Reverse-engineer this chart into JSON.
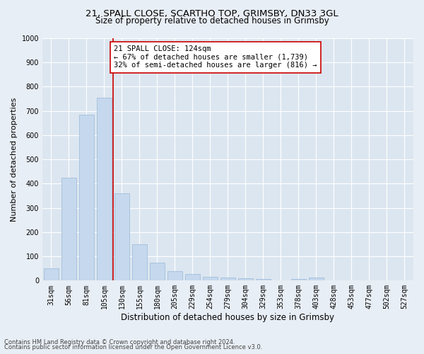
{
  "title_line1": "21, SPALL CLOSE, SCARTHO TOP, GRIMSBY, DN33 3GL",
  "title_line2": "Size of property relative to detached houses in Grimsby",
  "xlabel": "Distribution of detached houses by size in Grimsby",
  "ylabel": "Number of detached properties",
  "bar_labels": [
    "31sqm",
    "56sqm",
    "81sqm",
    "105sqm",
    "130sqm",
    "155sqm",
    "180sqm",
    "205sqm",
    "229sqm",
    "254sqm",
    "279sqm",
    "304sqm",
    "329sqm",
    "353sqm",
    "378sqm",
    "403sqm",
    "428sqm",
    "453sqm",
    "477sqm",
    "502sqm",
    "527sqm"
  ],
  "bar_values": [
    50,
    425,
    685,
    755,
    360,
    150,
    75,
    40,
    28,
    15,
    12,
    10,
    8,
    0,
    7,
    12,
    0,
    0,
    0,
    0,
    0
  ],
  "bar_color": "#c5d8ed",
  "bar_edge_color": "#9ab8d8",
  "vline_x_index": 4,
  "vline_color": "#cc0000",
  "ylim": [
    0,
    1000
  ],
  "yticks": [
    0,
    100,
    200,
    300,
    400,
    500,
    600,
    700,
    800,
    900,
    1000
  ],
  "annotation_text": "21 SPALL CLOSE: 124sqm\n← 67% of detached houses are smaller (1,739)\n32% of semi-detached houses are larger (816) →",
  "annotation_box_color": "#ffffff",
  "annotation_box_edge_color": "#cc0000",
  "background_color": "#e8eef5",
  "plot_bg_color": "#dce6f0",
  "footnote1": "Contains HM Land Registry data © Crown copyright and database right 2024.",
  "footnote2": "Contains public sector information licensed under the Open Government Licence v3.0.",
  "grid_color": "#ffffff",
  "title_fontsize": 9.5,
  "subtitle_fontsize": 8.5,
  "tick_fontsize": 7,
  "xlabel_fontsize": 8.5,
  "ylabel_fontsize": 8,
  "annotation_fontsize": 7.5,
  "footnote_fontsize": 6
}
